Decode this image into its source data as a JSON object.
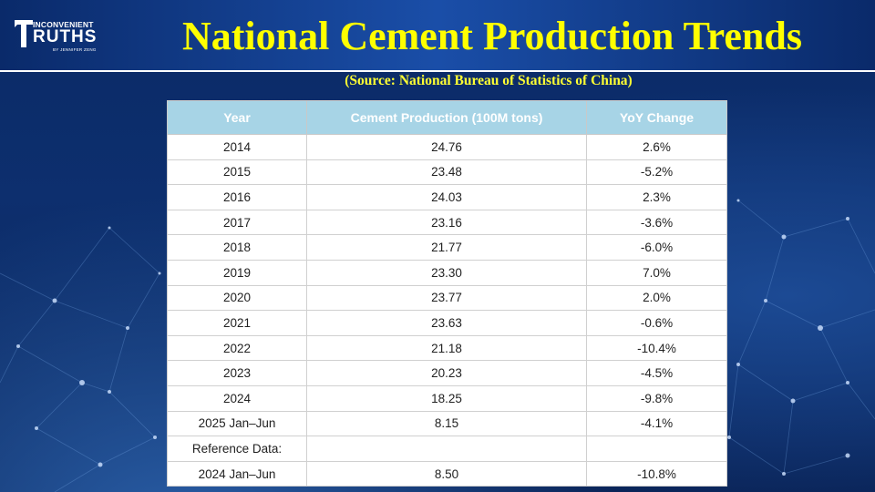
{
  "logo": {
    "top": "INCONVENIENT",
    "main": "RUTHS",
    "byline": "BY JENNIFER ZENG"
  },
  "title": "National Cement Production Trends",
  "source": "(Source: National Bureau of Statistics of China)",
  "colors": {
    "title": "#ffff00",
    "header_bg": "#a7d4e6",
    "negative": "#e0241c",
    "background": "#0d2f6e"
  },
  "chart_data": {
    "type": "table",
    "columns": [
      "Year",
      "Cement Production (100M tons)",
      "YoY Change"
    ],
    "rows": [
      {
        "year": "2014",
        "production": "24.76",
        "yoy": "2.6%",
        "negative": false
      },
      {
        "year": "2015",
        "production": "23.48",
        "yoy": "-5.2%",
        "negative": true
      },
      {
        "year": "2016",
        "production": "24.03",
        "yoy": "2.3%",
        "negative": false
      },
      {
        "year": "2017",
        "production": "23.16",
        "yoy": "-3.6%",
        "negative": true
      },
      {
        "year": "2018",
        "production": "21.77",
        "yoy": "-6.0%",
        "negative": true
      },
      {
        "year": "2019",
        "production": "23.30",
        "yoy": "7.0%",
        "negative": false
      },
      {
        "year": "2020",
        "production": "23.77",
        "yoy": "2.0%",
        "negative": false
      },
      {
        "year": "2021",
        "production": "23.63",
        "yoy": "-0.6%",
        "negative": true
      },
      {
        "year": "2022",
        "production": "21.18",
        "yoy": "-10.4%",
        "negative": true
      },
      {
        "year": "2023",
        "production": "20.23",
        "yoy": "-4.5%",
        "negative": true
      },
      {
        "year": "2024",
        "production": "18.25",
        "yoy": "-9.8%",
        "negative": true
      },
      {
        "year": "2025 Jan–Jun",
        "production": "8.15",
        "yoy": "-4.1%",
        "negative": true
      },
      {
        "year": "Reference Data:",
        "production": "",
        "yoy": "",
        "negative": false
      },
      {
        "year": "2024 Jan–Jun",
        "production": "8.50",
        "yoy": "-10.8%",
        "negative": true
      }
    ]
  }
}
